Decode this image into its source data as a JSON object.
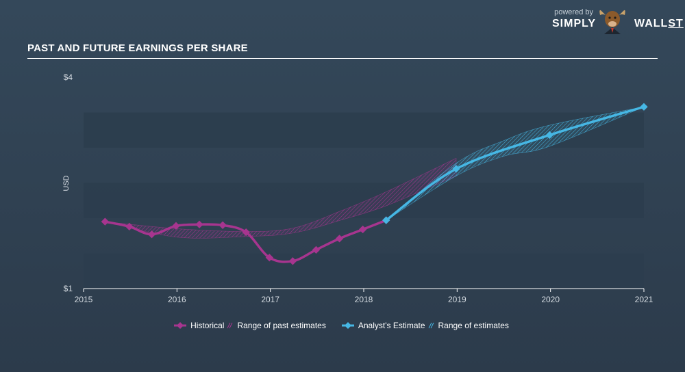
{
  "header": {
    "title": "PAST AND FUTURE EARNINGS PER SHARE"
  },
  "brand": {
    "powered_by": "powered by",
    "name_left": "SIMPLY",
    "name_right": "WALL",
    "name_suffix": "ST"
  },
  "colors": {
    "historical": "#a7358f",
    "estimate": "#46b7e4",
    "band_dark": "#2c3d4d",
    "axis_text": "#d7dde3"
  },
  "legend": {
    "historical": "Historical",
    "past_range": "Range of past estimates",
    "analyst_estimate": "Analyst's Estimate",
    "future_range": "Range of estimates"
  },
  "chart_data": {
    "type": "line",
    "title": "PAST AND FUTURE EARNINGS PER SHARE",
    "ylabel": "USD",
    "xlim": [
      2015,
      2021
    ],
    "ylim": [
      1,
      4
    ],
    "y_tick_labels": [
      "$4",
      "$1"
    ],
    "x_tick_labels": [
      "2015",
      "2016",
      "2017",
      "2018",
      "2019",
      "2020",
      "2021"
    ],
    "series": [
      {
        "name": "Historical",
        "points": [
          [
            2015.23,
            1.95
          ],
          [
            2015.49,
            1.88
          ],
          [
            2015.73,
            1.77
          ],
          [
            2015.99,
            1.89
          ],
          [
            2016.24,
            1.91
          ],
          [
            2016.49,
            1.9
          ],
          [
            2016.74,
            1.8
          ],
          [
            2016.99,
            1.44
          ],
          [
            2017.24,
            1.39
          ],
          [
            2017.49,
            1.55
          ],
          [
            2017.74,
            1.71
          ],
          [
            2017.99,
            1.84
          ],
          [
            2018.24,
            1.97
          ]
        ]
      },
      {
        "name": "Analyst's Estimate",
        "points": [
          [
            2018.24,
            1.97
          ],
          [
            2018.99,
            2.7
          ],
          [
            2019.99,
            3.18
          ],
          [
            2021.0,
            3.58
          ]
        ]
      }
    ],
    "ranges": [
      {
        "name": "Range of past estimates",
        "upper": [
          [
            2015.23,
            1.95
          ],
          [
            2016.0,
            1.85
          ],
          [
            2016.75,
            1.81
          ],
          [
            2017.25,
            1.86
          ],
          [
            2017.75,
            2.1
          ],
          [
            2018.25,
            2.38
          ],
          [
            2018.99,
            2.85
          ]
        ],
        "lower": [
          [
            2015.23,
            1.95
          ],
          [
            2016.0,
            1.73
          ],
          [
            2016.75,
            1.74
          ],
          [
            2017.25,
            1.79
          ],
          [
            2017.75,
            1.97
          ],
          [
            2018.25,
            2.18
          ],
          [
            2018.99,
            2.6
          ]
        ]
      },
      {
        "name": "Range of estimates",
        "upper": [
          [
            2018.24,
            1.97
          ],
          [
            2018.99,
            2.78
          ],
          [
            2019.5,
            3.1
          ],
          [
            2019.99,
            3.32
          ],
          [
            2021.0,
            3.58
          ]
        ],
        "lower": [
          [
            2018.24,
            1.97
          ],
          [
            2018.99,
            2.6
          ],
          [
            2019.5,
            2.88
          ],
          [
            2019.99,
            3.02
          ],
          [
            2021.0,
            3.58
          ]
        ]
      }
    ]
  }
}
